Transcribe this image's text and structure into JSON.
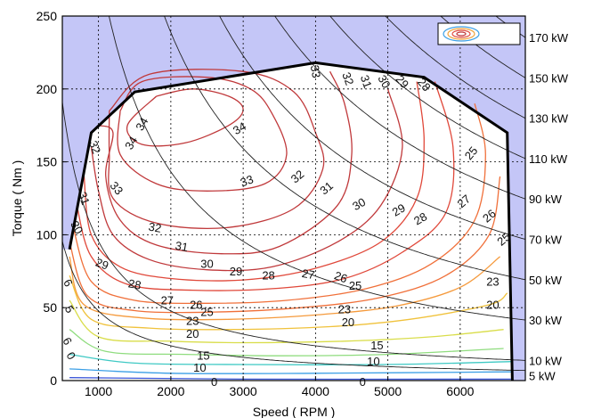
{
  "chart_data": {
    "type": "contour",
    "title": "",
    "xlabel": "Speed ( RPM )",
    "ylabel": "Torque ( Nm )",
    "xlim": [
      500,
      6900
    ],
    "ylim": [
      0,
      250
    ],
    "xticks": [
      "1000",
      "2000",
      "3000",
      "4000",
      "5000",
      "6000"
    ],
    "yticks": [
      "0",
      "50",
      "100",
      "150",
      "200",
      "250"
    ],
    "grid": true,
    "legend": "top-right",
    "envelope": {
      "x": [
        600,
        900,
        1500,
        4000,
        5500,
        6650,
        6720
      ],
      "y": [
        90,
        170,
        198,
        218,
        208,
        170,
        0
      ]
    },
    "power_lines": {
      "units": "kW",
      "values": [
        5,
        10,
        30,
        50,
        70,
        90,
        110,
        130,
        150,
        170
      ],
      "labels": [
        "5 kW",
        "10 kW",
        "30 kW",
        "50 kW",
        "70 kW",
        "90 kW",
        "110 kW",
        "130 kW",
        "150 kW",
        "170 kW"
      ]
    },
    "efficiency_contours": [
      {
        "level": "34",
        "points": [
          [
            1800,
            195
          ],
          [
            2300,
            200
          ],
          [
            2800,
            195
          ],
          [
            3000,
            186
          ],
          [
            2800,
            175
          ],
          [
            2200,
            163
          ],
          [
            1600,
            162
          ],
          [
            1400,
            175
          ],
          [
            1800,
            195
          ]
        ]
      },
      {
        "level": "33",
        "points": [
          [
            1300,
            185
          ],
          [
            1600,
            205
          ],
          [
            2500,
            208
          ],
          [
            3100,
            200
          ],
          [
            3400,
            183
          ],
          [
            3600,
            155
          ],
          [
            3300,
            135
          ],
          [
            2500,
            130
          ],
          [
            1800,
            135
          ],
          [
            1300,
            155
          ],
          [
            1300,
            185
          ]
        ]
      },
      {
        "level": "32",
        "points": [
          [
            1150,
            185
          ],
          [
            1700,
            210
          ],
          [
            3000,
            212
          ],
          [
            3700,
            198
          ],
          [
            4000,
            170
          ],
          [
            4100,
            145
          ],
          [
            3700,
            118
          ],
          [
            2800,
            105
          ],
          [
            1800,
            108
          ],
          [
            1200,
            125
          ],
          [
            1150,
            155
          ],
          [
            1150,
            185
          ]
        ]
      },
      {
        "level": "31",
        "points": [
          [
            1000,
            175
          ],
          [
            1200,
            170
          ],
          [
            1100,
            140
          ],
          [
            1300,
            110
          ],
          [
            1800,
            93
          ],
          [
            2700,
            87
          ],
          [
            3500,
            92
          ],
          [
            4300,
            120
          ],
          [
            4500,
            155
          ],
          [
            4400,
            190
          ],
          [
            4200,
            212
          ]
        ]
      },
      {
        "level": "30",
        "points": [
          [
            900,
            160
          ],
          [
            1000,
            130
          ],
          [
            1200,
            100
          ],
          [
            1700,
            83
          ],
          [
            2500,
            76
          ],
          [
            3400,
            78
          ],
          [
            4300,
            95
          ],
          [
            4900,
            120
          ],
          [
            5200,
            160
          ],
          [
            5000,
            200
          ]
        ]
      },
      {
        "level": "29",
        "points": [
          [
            800,
            140
          ],
          [
            900,
            100
          ],
          [
            1300,
            78
          ],
          [
            2000,
            70
          ],
          [
            3000,
            69
          ],
          [
            4000,
            77
          ],
          [
            4900,
            95
          ],
          [
            5400,
            125
          ],
          [
            5500,
            165
          ],
          [
            5400,
            205
          ]
        ]
      },
      {
        "level": "28",
        "points": [
          [
            700,
            120
          ],
          [
            900,
            85
          ],
          [
            1400,
            66
          ],
          [
            2300,
            62
          ],
          [
            3400,
            63
          ],
          [
            4400,
            70
          ],
          [
            5200,
            88
          ],
          [
            5800,
            115
          ],
          [
            5900,
            160
          ],
          [
            5650,
            205
          ]
        ]
      },
      {
        "level": "27",
        "points": [
          [
            650,
            105
          ],
          [
            900,
            68
          ],
          [
            1500,
            55
          ],
          [
            2500,
            53
          ],
          [
            3600,
            55
          ],
          [
            4700,
            63
          ],
          [
            5600,
            80
          ],
          [
            6200,
            110
          ],
          [
            6350,
            155
          ],
          [
            6200,
            190
          ]
        ]
      },
      {
        "level": "26",
        "points": [
          [
            600,
            95
          ],
          [
            850,
            58
          ],
          [
            1500,
            48
          ],
          [
            2600,
            47
          ],
          [
            3800,
            50
          ],
          [
            4900,
            57
          ],
          [
            5800,
            72
          ],
          [
            6400,
            100
          ],
          [
            6550,
            140
          ]
        ]
      },
      {
        "level": "25",
        "points": [
          [
            600,
            85
          ],
          [
            800,
            52
          ],
          [
            1600,
            43
          ],
          [
            2800,
            42
          ],
          [
            4000,
            45
          ],
          [
            5100,
            51
          ],
          [
            6000,
            64
          ],
          [
            6550,
            85
          ]
        ]
      },
      {
        "level": "23",
        "points": [
          [
            600,
            72
          ],
          [
            900,
            42
          ],
          [
            1700,
            36
          ],
          [
            2800,
            35
          ],
          [
            4200,
            37
          ],
          [
            5300,
            42
          ],
          [
            6400,
            52
          ],
          [
            6650,
            60
          ]
        ]
      },
      {
        "level": "20",
        "points": [
          [
            600,
            55
          ],
          [
            1000,
            30
          ],
          [
            2000,
            27
          ],
          [
            3000,
            26
          ],
          [
            4400,
            27
          ],
          [
            5600,
            30
          ],
          [
            6600,
            35
          ]
        ]
      },
      {
        "level": "15",
        "points": [
          [
            600,
            35
          ],
          [
            1100,
            20
          ],
          [
            2200,
            18
          ],
          [
            3500,
            17
          ],
          [
            5000,
            18
          ],
          [
            6600,
            22
          ]
        ]
      },
      {
        "level": "10",
        "points": [
          [
            600,
            18
          ],
          [
            1500,
            12
          ],
          [
            3000,
            11
          ],
          [
            5000,
            11
          ],
          [
            6700,
            13
          ]
        ]
      },
      {
        "level": "5",
        "points": [
          [
            600,
            8
          ],
          [
            2000,
            5
          ],
          [
            4000,
            5
          ],
          [
            6700,
            6
          ]
        ]
      },
      {
        "level": "0",
        "points": [
          [
            600,
            2
          ],
          [
            3000,
            1
          ],
          [
            6700,
            1
          ]
        ]
      }
    ],
    "contour_labels": [
      {
        "text": "34",
        "x": 1600,
        "y": 176,
        "angle": -60
      },
      {
        "text": "34",
        "x": 1450,
        "y": 163,
        "angle": -60
      },
      {
        "text": "34",
        "x": 2950,
        "y": 173,
        "angle": -30
      },
      {
        "text": "33",
        "x": 1250,
        "y": 132,
        "angle": 50
      },
      {
        "text": "33",
        "x": 3050,
        "y": 137,
        "angle": -20
      },
      {
        "text": "32",
        "x": 950,
        "y": 160,
        "angle": 70
      },
      {
        "text": "32",
        "x": 1780,
        "y": 105,
        "angle": 10
      },
      {
        "text": "32",
        "x": 3750,
        "y": 140,
        "angle": -40
      },
      {
        "text": "31",
        "x": 800,
        "y": 125,
        "angle": 70
      },
      {
        "text": "31",
        "x": 2150,
        "y": 92,
        "angle": 10
      },
      {
        "text": "31",
        "x": 4150,
        "y": 132,
        "angle": -40
      },
      {
        "text": "30",
        "x": 700,
        "y": 105,
        "angle": 60
      },
      {
        "text": "30",
        "x": 2500,
        "y": 80,
        "angle": 0
      },
      {
        "text": "30",
        "x": 4600,
        "y": 121,
        "angle": -30
      },
      {
        "text": "29",
        "x": 1050,
        "y": 80,
        "angle": 20
      },
      {
        "text": "29",
        "x": 2900,
        "y": 75,
        "angle": 0
      },
      {
        "text": "29",
        "x": 5150,
        "y": 117,
        "angle": -30
      },
      {
        "text": "28",
        "x": 1500,
        "y": 66,
        "angle": 10
      },
      {
        "text": "28",
        "x": 3350,
        "y": 72,
        "angle": 0
      },
      {
        "text": "28",
        "x": 5450,
        "y": 111,
        "angle": -30
      },
      {
        "text": "27",
        "x": 1950,
        "y": 55,
        "angle": 0
      },
      {
        "text": "27",
        "x": 3900,
        "y": 73,
        "angle": 10
      },
      {
        "text": "27",
        "x": 6050,
        "y": 123,
        "angle": -40
      },
      {
        "text": "26",
        "x": 4350,
        "y": 71,
        "angle": 20
      },
      {
        "text": "26",
        "x": 6400,
        "y": 113,
        "angle": -40
      },
      {
        "text": "26",
        "x": 2350,
        "y": 52,
        "angle": 0
      },
      {
        "text": "25",
        "x": 2500,
        "y": 47,
        "angle": 0
      },
      {
        "text": "25",
        "x": 4550,
        "y": 65,
        "angle": 0
      },
      {
        "text": "25",
        "x": 6600,
        "y": 97,
        "angle": -40
      },
      {
        "text": "25",
        "x": 6150,
        "y": 156,
        "angle": -50
      },
      {
        "text": "23",
        "x": 2300,
        "y": 41,
        "angle": 0
      },
      {
        "text": "23",
        "x": 4400,
        "y": 49,
        "angle": 0
      },
      {
        "text": "23",
        "x": 6450,
        "y": 68,
        "angle": 0
      },
      {
        "text": "20",
        "x": 2300,
        "y": 32,
        "angle": 0
      },
      {
        "text": "20",
        "x": 4450,
        "y": 40,
        "angle": 0
      },
      {
        "text": "20",
        "x": 6450,
        "y": 52,
        "angle": 0
      },
      {
        "text": "15",
        "x": 2450,
        "y": 17,
        "angle": 0
      },
      {
        "text": "15",
        "x": 4850,
        "y": 24,
        "angle": 0
      },
      {
        "text": "10",
        "x": 2400,
        "y": 9,
        "angle": 0
      },
      {
        "text": "10",
        "x": 4800,
        "y": 13,
        "angle": 0
      },
      {
        "text": "0",
        "x": 2600,
        "y": -1,
        "angle": 0
      },
      {
        "text": "0",
        "x": 4650,
        "y": -1,
        "angle": 0
      },
      {
        "text": "6",
        "x": 580,
        "y": 67,
        "angle": 60
      },
      {
        "text": "5",
        "x": 600,
        "y": 49,
        "angle": 60
      },
      {
        "text": "0",
        "x": 620,
        "y": 17,
        "angle": 60
      },
      {
        "text": "6",
        "x": 570,
        "y": 27,
        "angle": 60
      },
      {
        "text": "33",
        "x": 4000,
        "y": 212,
        "angle": 80
      },
      {
        "text": "32",
        "x": 4450,
        "y": 207,
        "angle": 70
      },
      {
        "text": "31",
        "x": 4700,
        "y": 205,
        "angle": 70
      },
      {
        "text": "30",
        "x": 4950,
        "y": 205,
        "angle": 60
      },
      {
        "text": "29",
        "x": 5200,
        "y": 205,
        "angle": 50
      },
      {
        "text": "28",
        "x": 5500,
        "y": 203,
        "angle": 50
      }
    ]
  }
}
